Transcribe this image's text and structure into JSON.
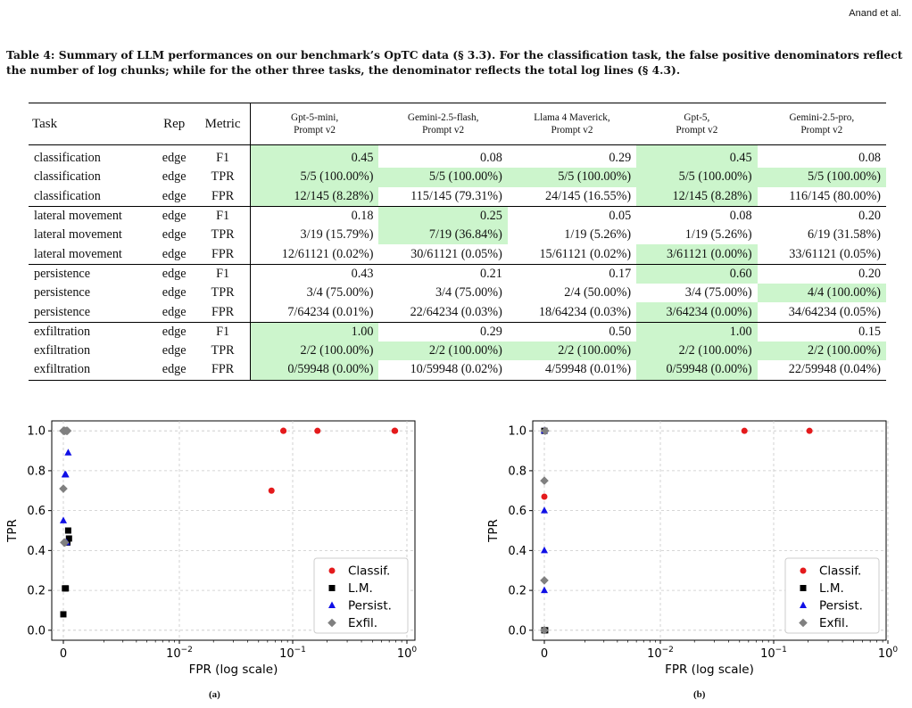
{
  "header": "Anand et al.",
  "caption": "Table 4: Summary of LLM performances on our benchmark’s OpTC data (§ 3.3). For the classification task, the false positive denominators reflect the number of log chunks; while for the other three tasks, the denominator reflects the total log lines (§ 4.3).",
  "table": {
    "headers": {
      "task": "Task",
      "rep": "Rep",
      "metric": "Metric",
      "models": [
        [
          "Gpt-5-mini,",
          "Prompt v2"
        ],
        [
          "Gemini-2.5-flash,",
          "Prompt v2"
        ],
        [
          "Llama 4 Maverick,",
          "Prompt v2"
        ],
        [
          "Gpt-5,",
          "Prompt v2"
        ],
        [
          "Gemini-2.5-pro,",
          "Prompt v2"
        ]
      ]
    },
    "groups": [
      [
        {
          "task": "classification",
          "rep": "edge",
          "metric": "F1",
          "values": [
            "0.45",
            "0.08",
            "0.29",
            "0.45",
            "0.08"
          ],
          "hl": [
            true,
            false,
            false,
            true,
            false
          ]
        },
        {
          "task": "classification",
          "rep": "edge",
          "metric": "TPR",
          "values": [
            "5/5 (100.00%)",
            "5/5 (100.00%)",
            "5/5 (100.00%)",
            "5/5 (100.00%)",
            "5/5 (100.00%)"
          ],
          "hl": [
            true,
            true,
            true,
            true,
            true
          ]
        },
        {
          "task": "classification",
          "rep": "edge",
          "metric": "FPR",
          "values": [
            "12/145 (8.28%)",
            "115/145 (79.31%)",
            "24/145 (16.55%)",
            "12/145 (8.28%)",
            "116/145 (80.00%)"
          ],
          "hl": [
            true,
            false,
            false,
            true,
            false
          ]
        }
      ],
      [
        {
          "task": "lateral movement",
          "rep": "edge",
          "metric": "F1",
          "values": [
            "0.18",
            "0.25",
            "0.05",
            "0.08",
            "0.20"
          ],
          "hl": [
            false,
            true,
            false,
            false,
            false
          ]
        },
        {
          "task": "lateral movement",
          "rep": "edge",
          "metric": "TPR",
          "values": [
            "3/19 (15.79%)",
            "7/19 (36.84%)",
            "1/19 (5.26%)",
            "1/19 (5.26%)",
            "6/19 (31.58%)"
          ],
          "hl": [
            false,
            true,
            false,
            false,
            false
          ]
        },
        {
          "task": "lateral movement",
          "rep": "edge",
          "metric": "FPR",
          "values": [
            "12/61121 (0.02%)",
            "30/61121 (0.05%)",
            "15/61121 (0.02%)",
            "3/61121 (0.00%)",
            "33/61121 (0.05%)"
          ],
          "hl": [
            false,
            false,
            false,
            true,
            false
          ]
        }
      ],
      [
        {
          "task": "persistence",
          "rep": "edge",
          "metric": "F1",
          "values": [
            "0.43",
            "0.21",
            "0.17",
            "0.60",
            "0.20"
          ],
          "hl": [
            false,
            false,
            false,
            true,
            false
          ]
        },
        {
          "task": "persistence",
          "rep": "edge",
          "metric": "TPR",
          "values": [
            "3/4 (75.00%)",
            "3/4 (75.00%)",
            "2/4 (50.00%)",
            "3/4 (75.00%)",
            "4/4 (100.00%)"
          ],
          "hl": [
            false,
            false,
            false,
            false,
            true
          ]
        },
        {
          "task": "persistence",
          "rep": "edge",
          "metric": "FPR",
          "values": [
            "7/64234 (0.01%)",
            "22/64234 (0.03%)",
            "18/64234 (0.03%)",
            "3/64234 (0.00%)",
            "34/64234 (0.05%)"
          ],
          "hl": [
            false,
            false,
            false,
            true,
            false
          ]
        }
      ],
      [
        {
          "task": "exfiltration",
          "rep": "edge",
          "metric": "F1",
          "values": [
            "1.00",
            "0.29",
            "0.50",
            "1.00",
            "0.15"
          ],
          "hl": [
            true,
            false,
            false,
            true,
            false
          ]
        },
        {
          "task": "exfiltration",
          "rep": "edge",
          "metric": "TPR",
          "values": [
            "2/2 (100.00%)",
            "2/2 (100.00%)",
            "2/2 (100.00%)",
            "2/2 (100.00%)",
            "2/2 (100.00%)"
          ],
          "hl": [
            true,
            true,
            true,
            true,
            true
          ]
        },
        {
          "task": "exfiltration",
          "rep": "edge",
          "metric": "FPR",
          "values": [
            "0/59948 (0.00%)",
            "10/59948 (0.02%)",
            "4/59948 (0.01%)",
            "0/59948 (0.00%)",
            "22/59948 (0.04%)"
          ],
          "hl": [
            true,
            false,
            false,
            true,
            false
          ]
        }
      ]
    ]
  },
  "chart_data": [
    {
      "type": "scatter",
      "title": "",
      "subcaption": "(a)",
      "xlabel": "FPR (log scale)",
      "ylabel": "TPR",
      "xscale": "symlog",
      "x_ticks": [
        "0",
        "10^-2",
        "10^-1",
        "10^0"
      ],
      "y_ticks": [
        "0.0",
        "0.2",
        "0.4",
        "0.6",
        "0.8",
        "1.0"
      ],
      "ylim": [
        -0.05,
        1.05
      ],
      "xlim": [
        -0.0008,
        1.0
      ],
      "grid": true,
      "legend_position": "bottom-right",
      "series": [
        {
          "name": "Classif.",
          "color": "#e41a1c",
          "marker": "circle",
          "points": [
            [
              0.0828,
              1.0
            ],
            [
              0.1655,
              1.0
            ],
            [
              0.7931,
              1.0
            ],
            [
              0.8,
              1.0
            ],
            [
              0.0828,
              1.0
            ],
            [
              0.065,
              0.7
            ]
          ]
        },
        {
          "name": "L.M.",
          "color": "#000000",
          "marker": "square",
          "points": [
            [
              0.0,
              0.08
            ],
            [
              0.0002,
              0.21
            ],
            [
              0.0003,
              0.21
            ],
            [
              0.0006,
              0.5
            ],
            [
              0.0007,
              0.46
            ],
            [
              0.0005,
              0.44
            ]
          ]
        },
        {
          "name": "Persist.",
          "color": "#1010e6",
          "marker": "triangle",
          "points": [
            [
              0.0,
              0.55
            ],
            [
              0.0002,
              0.78
            ],
            [
              0.0003,
              0.78
            ],
            [
              0.0006,
              0.89
            ],
            [
              0.0004,
              0.44
            ]
          ]
        },
        {
          "name": "Exfil.",
          "color": "#808080",
          "marker": "diamond",
          "points": [
            [
              0.0,
              1.0
            ],
            [
              0.0001,
              1.0
            ],
            [
              0.0002,
              1.0
            ],
            [
              0.0004,
              1.0
            ],
            [
              0.0005,
              1.0
            ],
            [
              0.0,
              0.71
            ],
            [
              0.0001,
              0.44
            ],
            [
              0.0002,
              0.44
            ]
          ]
        }
      ]
    },
    {
      "type": "scatter",
      "title": "",
      "subcaption": "(b)",
      "xlabel": "FPR (log scale)",
      "ylabel": "TPR",
      "xscale": "symlog",
      "x_ticks": [
        "0",
        "10^-2",
        "10^-1",
        "10^0"
      ],
      "y_ticks": [
        "0.0",
        "0.2",
        "0.4",
        "0.6",
        "0.8",
        "1.0"
      ],
      "ylim": [
        -0.05,
        1.05
      ],
      "xlim": [
        -0.0008,
        1.0
      ],
      "grid": true,
      "legend_position": "bottom-right",
      "series": [
        {
          "name": "Classif.",
          "color": "#e41a1c",
          "marker": "circle",
          "points": [
            [
              0.0552,
              1.0
            ],
            [
              0.2069,
              1.0
            ],
            [
              0.0,
              0.67
            ]
          ]
        },
        {
          "name": "L.M.",
          "color": "#000000",
          "marker": "square",
          "points": [
            [
              0.0,
              1.0
            ],
            [
              0.0,
              0.0
            ],
            [
              0.0001,
              0.0
            ]
          ]
        },
        {
          "name": "Persist.",
          "color": "#1010e6",
          "marker": "triangle",
          "points": [
            [
              0.0,
              1.0
            ],
            [
              0.0,
              0.6
            ],
            [
              0.0,
              0.4
            ],
            [
              0.0,
              0.2
            ]
          ]
        },
        {
          "name": "Exfil.",
          "color": "#808080",
          "marker": "diamond",
          "points": [
            [
              0.0001,
              1.0
            ],
            [
              0.0,
              0.75
            ],
            [
              0.0,
              0.25
            ],
            [
              0.0,
              0.0
            ]
          ]
        }
      ]
    }
  ]
}
